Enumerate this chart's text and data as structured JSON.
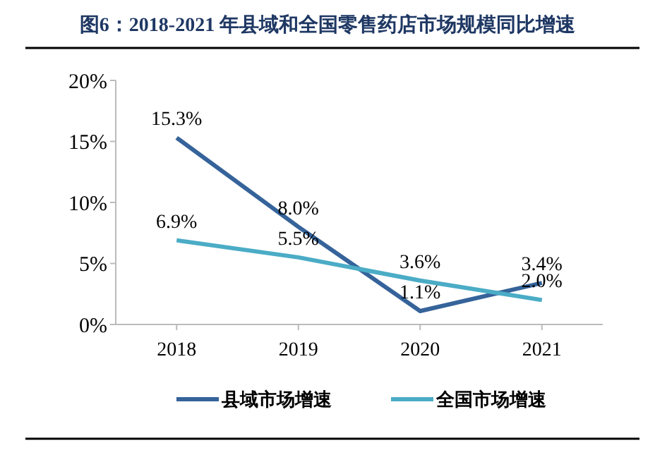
{
  "chart_data": {
    "type": "line",
    "title": "图6：2018-2021 年县域和全国零售药店市场规模同比增速",
    "categories": [
      "2018",
      "2019",
      "2020",
      "2021"
    ],
    "series": [
      {
        "name": "县域市场增速",
        "color": "#35639a",
        "values": [
          15.3,
          8.0,
          1.1,
          3.4
        ],
        "value_labels": [
          "15.3%",
          "8.0%",
          "1.1%",
          "3.4%"
        ]
      },
      {
        "name": "全国市场增速",
        "color": "#4bacc6",
        "values": [
          6.9,
          5.5,
          3.6,
          2.0
        ],
        "value_labels": [
          "6.9%",
          "5.5%",
          "3.6%",
          "2.0%"
        ]
      }
    ],
    "ylim": [
      0,
      20
    ],
    "yticks": [
      {
        "value": 0,
        "label": "0%"
      },
      {
        "value": 5,
        "label": "5%"
      },
      {
        "value": 10,
        "label": "10%"
      },
      {
        "value": 15,
        "label": "15%"
      },
      {
        "value": 20,
        "label": "20%"
      }
    ],
    "grid": false,
    "legend": "bottom",
    "marker": "none",
    "line_style": "solid"
  }
}
